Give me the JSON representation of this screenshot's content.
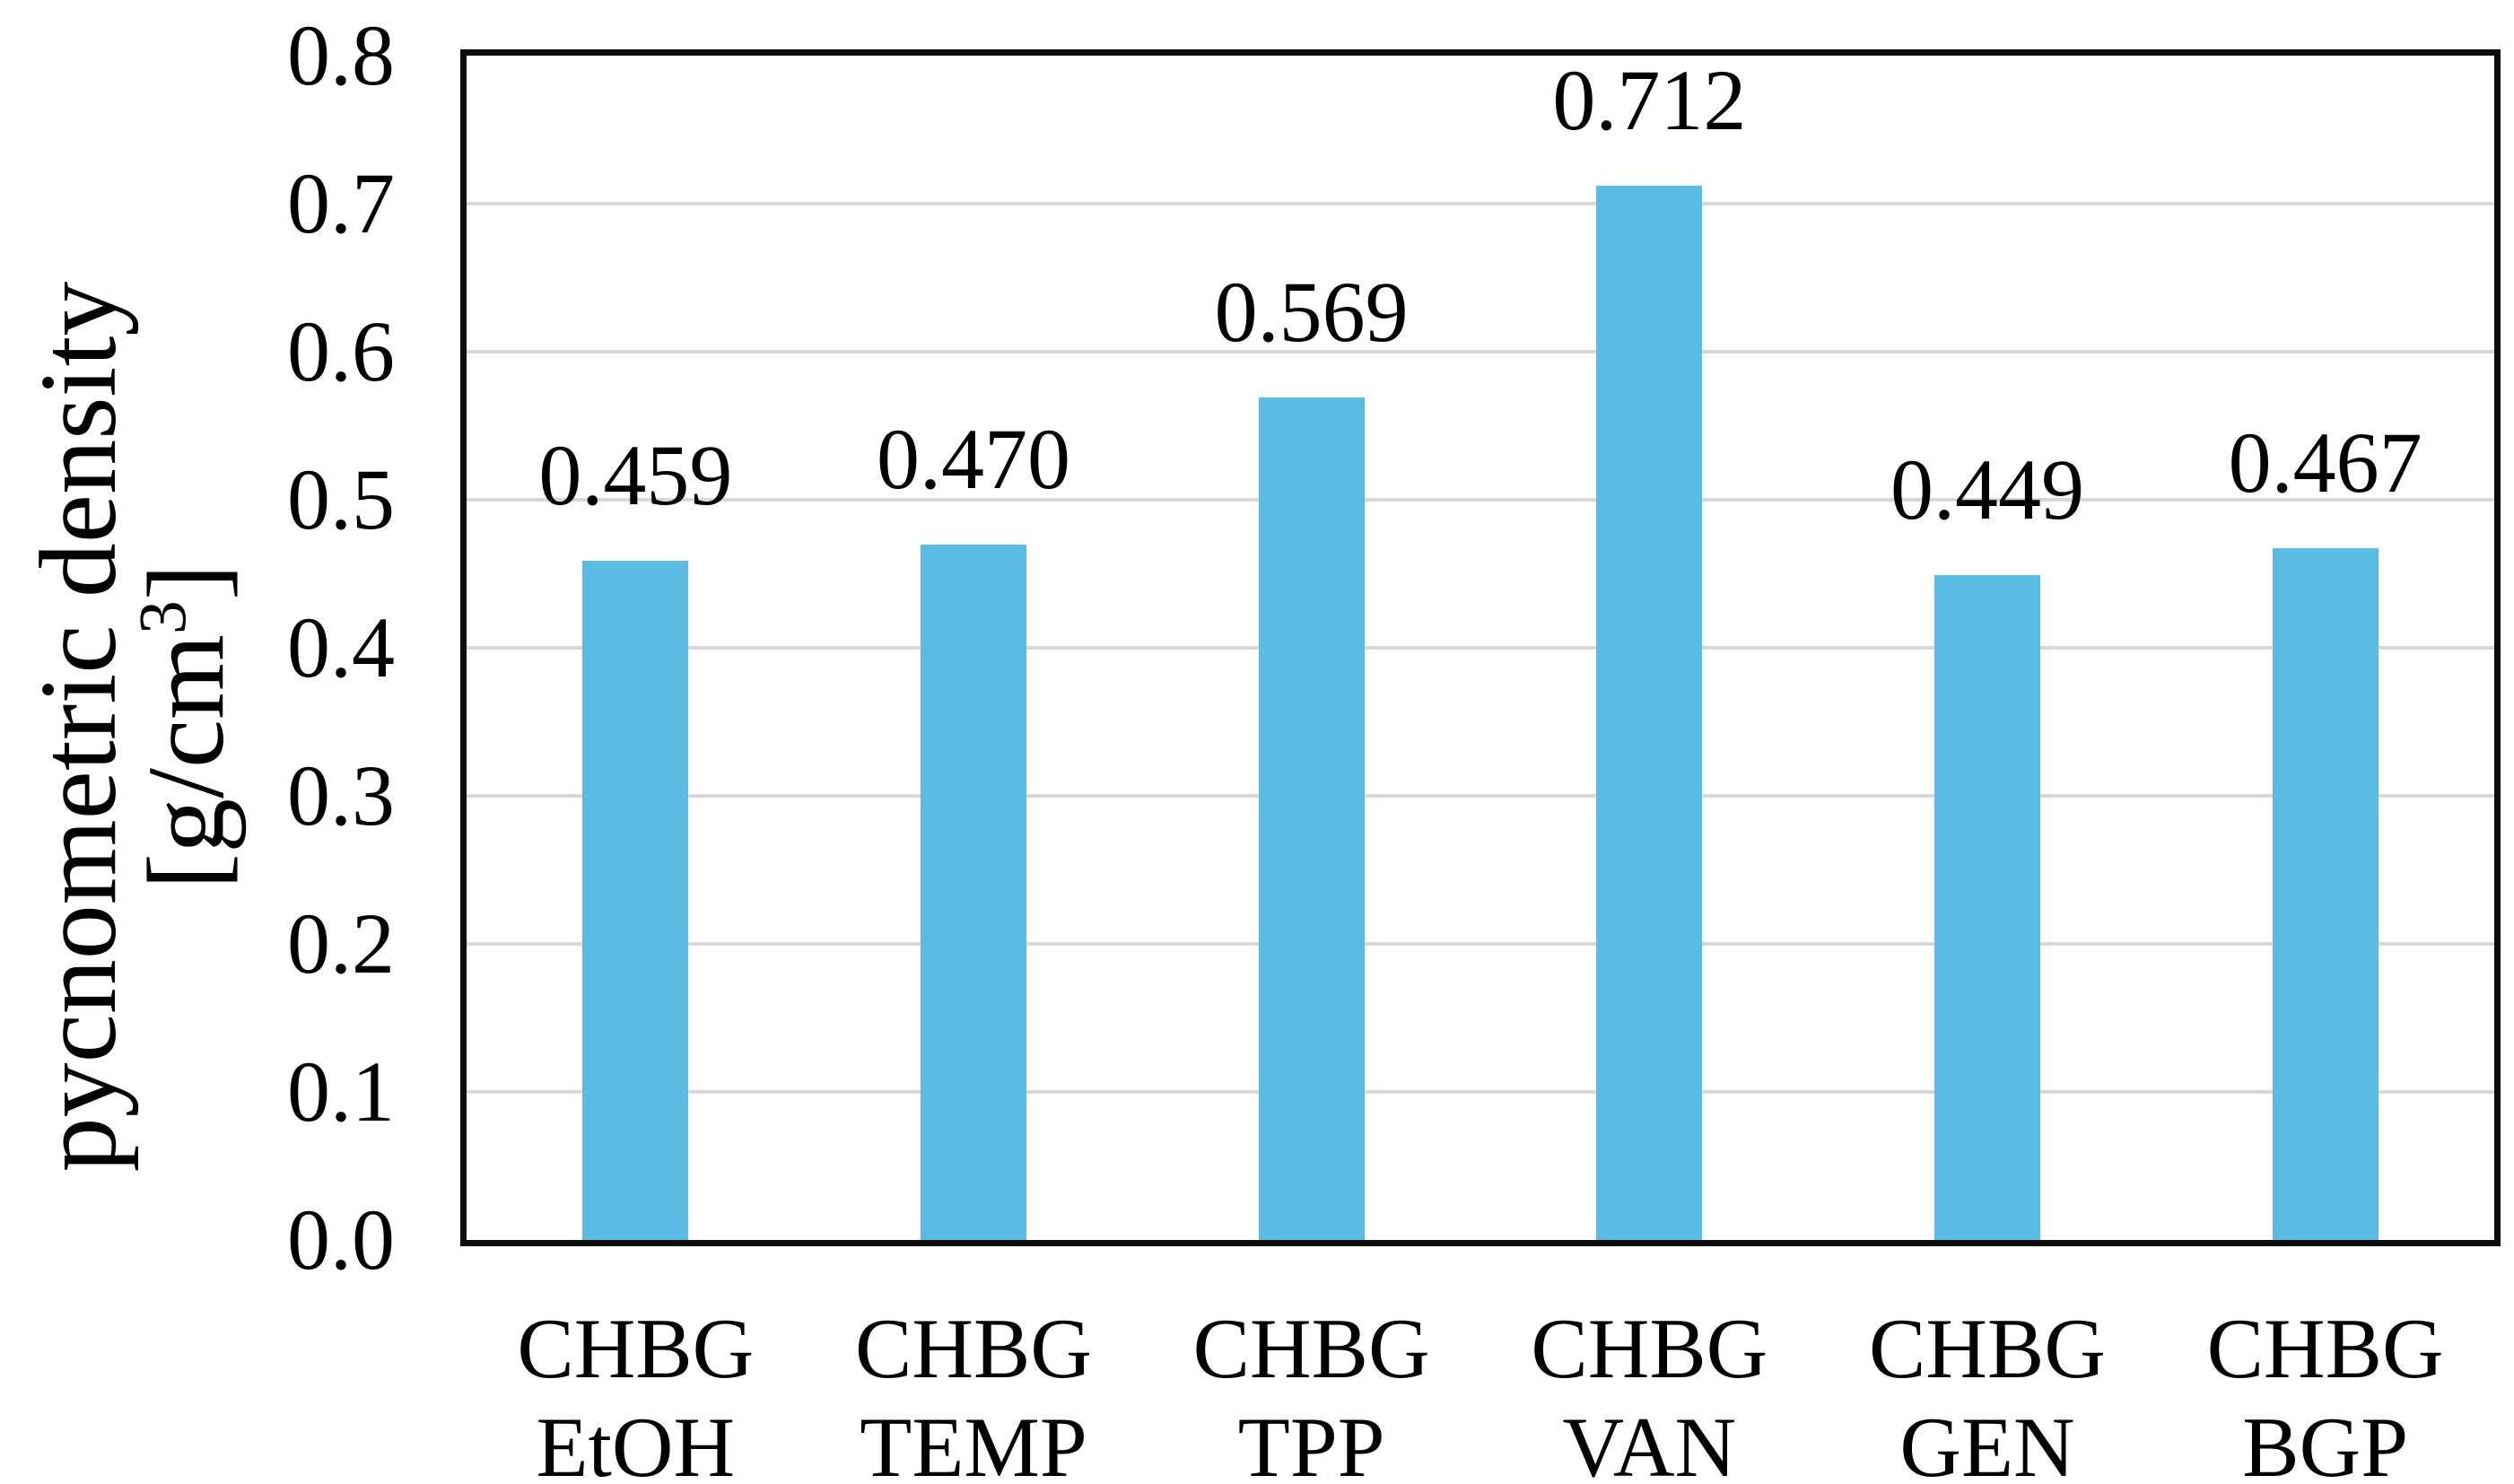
{
  "chart_data": {
    "type": "bar",
    "title": "",
    "categories": [
      [
        "CHBG",
        "EtOH"
      ],
      [
        "CHBG",
        "TEMP"
      ],
      [
        "CHBG",
        "TPP"
      ],
      [
        "CHBG",
        "VAN"
      ],
      [
        "CHBG",
        "GEN"
      ],
      [
        "CHBG",
        "BGP"
      ]
    ],
    "values": [
      0.459,
      0.47,
      0.569,
      0.712,
      0.449,
      0.467
    ],
    "value_labels": [
      "0.459",
      "0.470",
      "0.569",
      "0.712",
      "0.449",
      "0.467"
    ],
    "xlabel": "",
    "ylabel": "pycnometric density [g/cm³]",
    "y_axis": {
      "title_line1": "pycnometric density",
      "title_line2_prefix": "[g/cm",
      "title_line2_sup": "3",
      "title_line2_suffix": "]",
      "min": 0.0,
      "max": 0.8,
      "tick_step": 0.1,
      "tick_labels": [
        "0.0",
        "0.1",
        "0.2",
        "0.3",
        "0.4",
        "0.5",
        "0.6",
        "0.7",
        "0.8"
      ]
    },
    "ylim": [
      0.0,
      0.8
    ],
    "grid": "horizontal",
    "legend_position": "none",
    "colors": {
      "bar": "#5ABCE2",
      "gridline": "#D8D8D8",
      "frame": "#0D0D0D",
      "text": "#000000",
      "background": "#FFFFFF"
    }
  }
}
